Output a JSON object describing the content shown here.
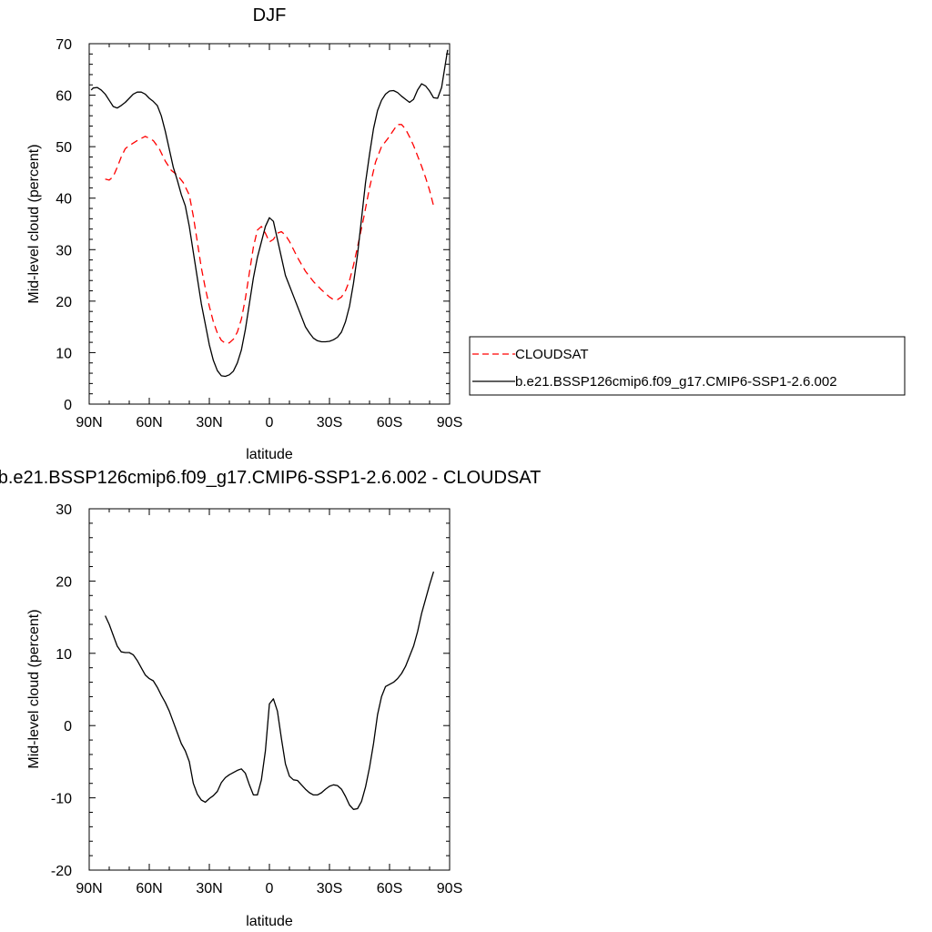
{
  "chart_data": [
    {
      "type": "line",
      "title": "DJF",
      "xlabel": "latitude",
      "ylabel": "Mid-level cloud (percent)",
      "xlim": [
        90,
        -90
      ],
      "ylim": [
        0,
        70
      ],
      "x_ticks": [
        {
          "value": 90,
          "label": "90N"
        },
        {
          "value": 60,
          "label": "60N"
        },
        {
          "value": 30,
          "label": "30N"
        },
        {
          "value": 0,
          "label": "0"
        },
        {
          "value": -30,
          "label": "30S"
        },
        {
          "value": -60,
          "label": "60S"
        },
        {
          "value": -90,
          "label": "90S"
        }
      ],
      "y_ticks": [
        {
          "value": 0,
          "label": "0"
        },
        {
          "value": 10,
          "label": "10"
        },
        {
          "value": 20,
          "label": "20"
        },
        {
          "value": 30,
          "label": "30"
        },
        {
          "value": 40,
          "label": "40"
        },
        {
          "value": 50,
          "label": "50"
        },
        {
          "value": 60,
          "label": "60"
        },
        {
          "value": 70,
          "label": "70"
        }
      ],
      "grid": false,
      "legend": {
        "placement": "right",
        "box": true
      },
      "series": [
        {
          "name": "CLOUDSAT",
          "color": "#ff0000",
          "dash": "dashed",
          "x": [
            82,
            80,
            78,
            76,
            74,
            72,
            70,
            66,
            62,
            58,
            55,
            52,
            49,
            46,
            43,
            40,
            38,
            36,
            34,
            32,
            30,
            28,
            26,
            24,
            22,
            20,
            18,
            16,
            14,
            12,
            10,
            8,
            6,
            4,
            2,
            0,
            -2,
            -4,
            -6,
            -8,
            -10,
            -14,
            -18,
            -22,
            -26,
            -30,
            -32,
            -34,
            -36,
            -38,
            -40,
            -42,
            -44,
            -47,
            -50,
            -53,
            -56,
            -59,
            -62,
            -64,
            -66,
            -68,
            -70,
            -72,
            -74,
            -76,
            -78,
            -80,
            -82
          ],
          "y": [
            43.7,
            43.5,
            44.2,
            46,
            48,
            49.6,
            50.2,
            51.2,
            52,
            51.2,
            49.6,
            47.2,
            45.4,
            44.5,
            43,
            40.6,
            36.5,
            31.5,
            26.5,
            22.5,
            19,
            16,
            13.8,
            12.4,
            11.8,
            11.9,
            12.6,
            14,
            16.5,
            20.5,
            25.5,
            30.5,
            33.8,
            34.5,
            33.2,
            31.5,
            32,
            33.2,
            33.5,
            32.8,
            31.6,
            28.5,
            25.8,
            23.8,
            22.2,
            20.8,
            20.3,
            20.3,
            20.8,
            22,
            24,
            27,
            30.5,
            36,
            42,
            47,
            50,
            51.5,
            53.2,
            54.3,
            54.3,
            53.4,
            51.9,
            50.2,
            48.2,
            46.2,
            44,
            41.5,
            38.5
          ]
        },
        {
          "name": "b.e21.BSSP126cmip6.f09_g17.CMIP6-SSP1-2.6.002",
          "color": "#000000",
          "dash": "solid",
          "x": [
            89,
            88,
            86,
            84,
            82,
            80,
            78,
            76,
            74,
            72,
            70,
            68,
            66,
            64,
            62,
            60,
            58,
            56,
            54,
            52,
            50,
            48,
            46,
            44,
            42,
            40,
            38,
            36,
            34,
            32,
            30,
            28,
            26,
            24,
            22,
            20,
            18,
            16,
            14,
            12,
            10,
            8,
            6,
            4,
            2,
            0,
            -2,
            -4,
            -6,
            -8,
            -10,
            -12,
            -14,
            -16,
            -18,
            -20,
            -22,
            -24,
            -26,
            -28,
            -30,
            -32,
            -34,
            -36,
            -38,
            -40,
            -42,
            -44,
            -46,
            -48,
            -50,
            -52,
            -54,
            -56,
            -58,
            -60,
            -62,
            -64,
            -66,
            -68,
            -70,
            -72,
            -74,
            -76,
            -78,
            -80,
            -82,
            -84,
            -86,
            -89
          ],
          "y": [
            61,
            61.4,
            61.5,
            61,
            60.2,
            59,
            57.8,
            57.5,
            58,
            58.6,
            59.4,
            60.2,
            60.6,
            60.6,
            60.2,
            59.4,
            58.8,
            58,
            56,
            53,
            49.5,
            46,
            43.5,
            40.7,
            38.5,
            34.5,
            29.5,
            24.5,
            19.5,
            15.5,
            11.5,
            8.5,
            6.5,
            5.5,
            5.4,
            5.7,
            6.4,
            8,
            10.5,
            14.5,
            19.5,
            24.5,
            28.5,
            31.5,
            34.5,
            36.2,
            35.5,
            32,
            28.5,
            25,
            23,
            21,
            19,
            17,
            15,
            13.8,
            12.8,
            12.3,
            12.1,
            12.1,
            12.2,
            12.5,
            13,
            14,
            16,
            19,
            23.5,
            29,
            36,
            43,
            48.5,
            53.5,
            57,
            59,
            60.2,
            60.8,
            60.9,
            60.5,
            59.8,
            59.2,
            58.6,
            59.2,
            61,
            62.2,
            61.8,
            60.8,
            59.5,
            59.4,
            61.5,
            68.8
          ]
        }
      ]
    },
    {
      "type": "line",
      "title": "b.e21.BSSP126cmip6.f09_g17.CMIP6-SSP1-2.6.002 - CLOUDSAT",
      "xlabel": "latitude",
      "ylabel": "Mid-level cloud (percent)",
      "xlim": [
        90,
        -90
      ],
      "ylim": [
        -20,
        30
      ],
      "x_ticks": [
        {
          "value": 90,
          "label": "90N"
        },
        {
          "value": 60,
          "label": "60N"
        },
        {
          "value": 30,
          "label": "30N"
        },
        {
          "value": 0,
          "label": "0"
        },
        {
          "value": -30,
          "label": "30S"
        },
        {
          "value": -60,
          "label": "60S"
        },
        {
          "value": -90,
          "label": "90S"
        }
      ],
      "y_ticks": [
        {
          "value": -20,
          "label": "-20"
        },
        {
          "value": -10,
          "label": "-10"
        },
        {
          "value": 0,
          "label": "0"
        },
        {
          "value": 10,
          "label": "10"
        },
        {
          "value": 20,
          "label": "20"
        },
        {
          "value": 30,
          "label": "30"
        }
      ],
      "grid": false,
      "series": [
        {
          "color": "#000000",
          "dash": "solid",
          "x": [
            82,
            80,
            78,
            76,
            74,
            72,
            70,
            68,
            66,
            64,
            62,
            60,
            58,
            56,
            54,
            52,
            50,
            48,
            46,
            44,
            42,
            40,
            38,
            36,
            34,
            32,
            30,
            28,
            26,
            24,
            22,
            20,
            18,
            16,
            14,
            12,
            10,
            8,
            6,
            4,
            2,
            0,
            -2,
            -4,
            -6,
            -8,
            -10,
            -12,
            -14,
            -16,
            -18,
            -20,
            -22,
            -24,
            -26,
            -28,
            -30,
            -32,
            -34,
            -36,
            -38,
            -40,
            -42,
            -44,
            -46,
            -48,
            -50,
            -52,
            -54,
            -56,
            -58,
            -60,
            -62,
            -64,
            -66,
            -68,
            -70,
            -72,
            -74,
            -76,
            -78,
            -80,
            -82
          ],
          "y": [
            15.2,
            14,
            12.5,
            11,
            10.2,
            10.1,
            10.1,
            9.8,
            9,
            8,
            7,
            6.5,
            6.2,
            5.3,
            4.2,
            3.2,
            2,
            0.5,
            -1,
            -2.5,
            -3.5,
            -5,
            -8,
            -9.5,
            -10.3,
            -10.6,
            -10.1,
            -9.7,
            -9.1,
            -7.9,
            -7.2,
            -6.8,
            -6.5,
            -6.2,
            -6,
            -6.6,
            -8.2,
            -9.6,
            -9.6,
            -7.5,
            -3.5,
            3,
            3.7,
            2,
            -1.8,
            -5.3,
            -7,
            -7.5,
            -7.6,
            -8.2,
            -8.8,
            -9.3,
            -9.6,
            -9.6,
            -9.3,
            -8.8,
            -8.4,
            -8.2,
            -8.3,
            -8.8,
            -9.8,
            -11,
            -11.6,
            -11.5,
            -10.5,
            -8.5,
            -5.8,
            -2.5,
            1.5,
            4,
            5.4,
            5.7,
            6,
            6.5,
            7.2,
            8.2,
            9.6,
            11,
            13,
            15.5,
            17.5,
            19.5,
            21.3
          ]
        }
      ]
    }
  ]
}
